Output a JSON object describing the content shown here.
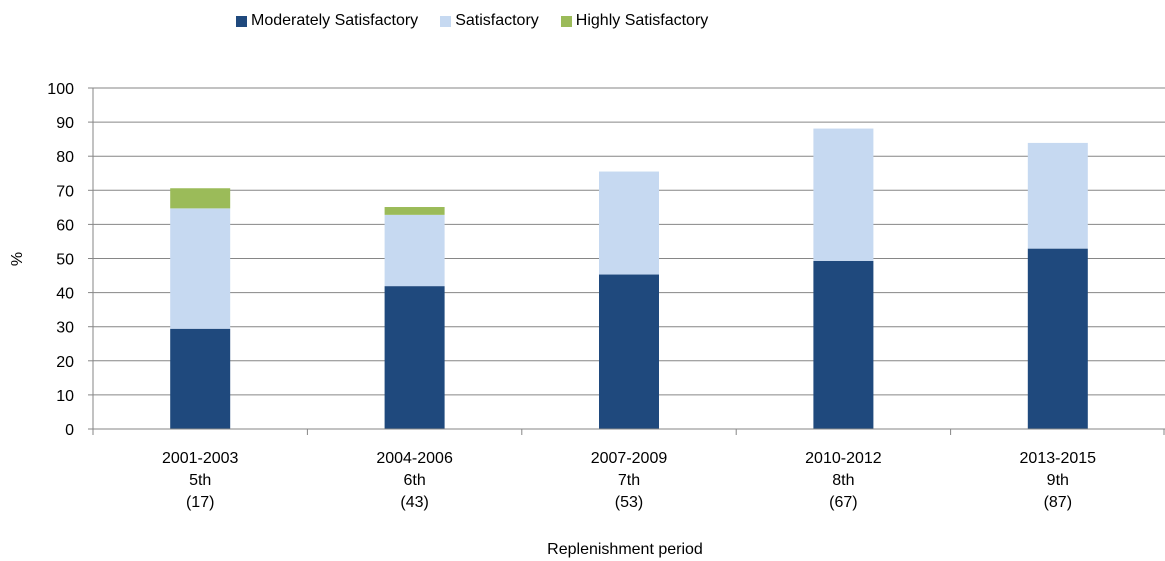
{
  "chart_data": {
    "type": "bar",
    "stacked": true,
    "categories": [
      [
        "2001-2003",
        "5th",
        "(17)"
      ],
      [
        "2004-2006",
        "6th",
        "(43)"
      ],
      [
        "2007-2009",
        "7th",
        "(53)"
      ],
      [
        "2010-2012",
        "8th",
        "(67)"
      ],
      [
        "2013-2015",
        "9th",
        "(87)"
      ]
    ],
    "series": [
      {
        "name": "Moderately Satisfactory",
        "color": "#1f497d",
        "values": [
          29.4,
          41.9,
          45.3,
          49.3,
          52.9
        ]
      },
      {
        "name": "Satisfactory",
        "color": "#c6d9f1",
        "values": [
          35.3,
          20.9,
          30.2,
          38.8,
          31.0
        ]
      },
      {
        "name": "Highly Satisfactory",
        "color": "#9bbb59",
        "values": [
          5.9,
          2.3,
          0,
          0,
          0
        ]
      }
    ],
    "xlabel": "Replenishment period",
    "ylabel": "%",
    "ylim": [
      0,
      100
    ],
    "yticks": [
      0,
      10,
      20,
      30,
      40,
      50,
      60,
      70,
      80,
      90,
      100
    ],
    "grid": true,
    "legend_position": "top"
  }
}
